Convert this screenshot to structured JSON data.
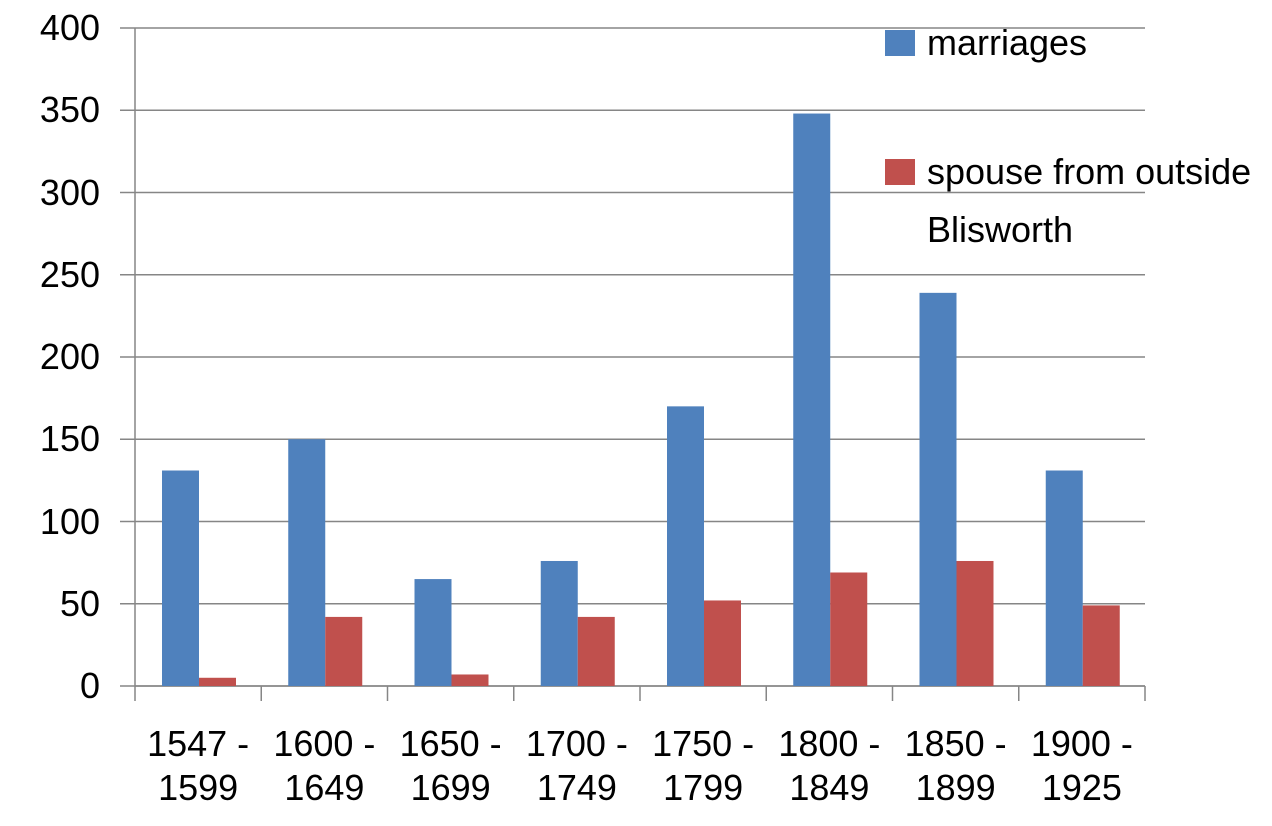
{
  "chart_data": {
    "type": "bar",
    "categories": [
      "1547 - 1599",
      "1600 - 1649",
      "1650 - 1699",
      "1700 - 1749",
      "1750 - 1799",
      "1800 - 1849",
      "1850 - 1899",
      "1900 - 1925"
    ],
    "series": [
      {
        "name": "marriages",
        "color": "#4f81bd",
        "values": [
          131,
          150,
          65,
          76,
          170,
          348,
          239,
          131
        ]
      },
      {
        "name": "spouse from outside Blisworth",
        "color": "#c0504d",
        "values": [
          5,
          42,
          7,
          42,
          52,
          69,
          76,
          49
        ]
      }
    ],
    "ylim": [
      0,
      400
    ],
    "yticks": [
      0,
      50,
      100,
      150,
      200,
      250,
      300,
      350,
      400
    ],
    "grid": true,
    "legend": "top-right"
  }
}
